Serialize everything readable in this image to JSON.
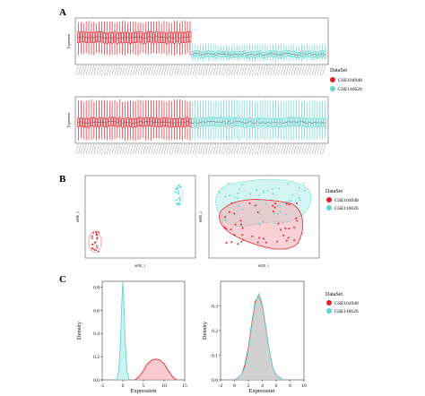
{
  "figure": {
    "panel_labels": [
      "A",
      "B",
      "C"
    ]
  },
  "colors": {
    "series1": "#e8202a",
    "series2": "#5fd6cf",
    "series1_fill": "#f3a9b3",
    "series2_fill": "#a8ece6",
    "overlap_fill": "#c8c8c8"
  },
  "legend": {
    "title": "DataSet",
    "items": [
      "GSE104948",
      "GSE116626"
    ]
  },
  "panelA": {
    "ylabel_top": "Expression",
    "ylabel_bottom": "Expression"
  },
  "panelB": {
    "left": {
      "xlabel": "tSNE_1",
      "ylabel": "tSNE_2"
    },
    "right": {
      "xlabel": "tSNE_1",
      "ylabel": "tSNE_2"
    }
  },
  "chart_data": [
    {
      "type": "line",
      "panel": "C-left",
      "xlabel": "Expression",
      "ylabel": "Density",
      "xlim": [
        -5,
        15
      ],
      "ylim": [
        0,
        0.85
      ],
      "xticks": [
        -5,
        0,
        5,
        10,
        15
      ],
      "yticks": [
        0.0,
        0.2,
        0.4,
        0.6,
        0.8
      ],
      "series": [
        {
          "name": "GSE104948",
          "x": [
            3,
            4,
            5,
            6,
            7,
            8,
            9,
            10,
            11,
            12,
            13
          ],
          "values": [
            0.0,
            0.03,
            0.08,
            0.14,
            0.17,
            0.18,
            0.17,
            0.14,
            0.08,
            0.03,
            0.0
          ]
        },
        {
          "name": "GSE116626",
          "x": [
            -1.5,
            -1.0,
            -0.6,
            -0.3,
            0.0,
            0.3,
            0.6,
            1.0,
            1.5
          ],
          "values": [
            0.0,
            0.08,
            0.3,
            0.62,
            0.85,
            0.62,
            0.3,
            0.08,
            0.0
          ]
        }
      ]
    },
    {
      "type": "line",
      "panel": "C-right",
      "xlabel": "Expression",
      "ylabel": "Density",
      "xlim": [
        -2,
        10
      ],
      "ylim": [
        0,
        0.4
      ],
      "xticks": [
        -2,
        0,
        2,
        4,
        6,
        8,
        10
      ],
      "yticks": [
        0.0,
        0.1,
        0.2,
        0.3
      ],
      "series": [
        {
          "name": "GSE104948",
          "x": [
            0,
            1,
            1.5,
            2,
            2.5,
            3,
            3.5,
            4,
            4.5,
            5,
            5.5,
            6,
            7
          ],
          "values": [
            0.0,
            0.02,
            0.06,
            0.13,
            0.23,
            0.32,
            0.34,
            0.3,
            0.21,
            0.12,
            0.05,
            0.02,
            0.0
          ]
        },
        {
          "name": "GSE116626",
          "x": [
            0,
            1,
            1.5,
            2,
            2.5,
            3,
            3.5,
            4,
            4.5,
            5,
            5.5,
            6,
            7
          ],
          "values": [
            0.0,
            0.02,
            0.05,
            0.12,
            0.22,
            0.31,
            0.35,
            0.31,
            0.22,
            0.12,
            0.05,
            0.02,
            0.0
          ]
        }
      ]
    }
  ]
}
